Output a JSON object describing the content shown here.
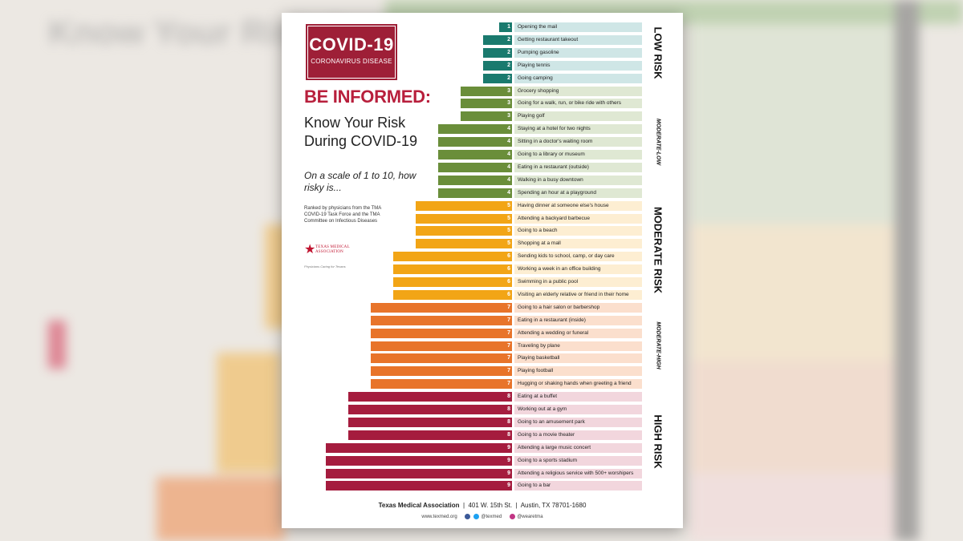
{
  "badge": {
    "title": "COVID-19",
    "subtitle": "CORONAVIRUS DISEASE"
  },
  "heading": "BE INFORMED:",
  "subheading": "Know Your Risk During COVID-19",
  "question": "On a scale of 1 to 10, how risky is...",
  "ranked_by": "Ranked by physicians from the TMA COVID-19 Task Force and the TMA Committee on Infectious Diseases",
  "org_logo": {
    "name": "TEXAS MEDICAL ASSOCIATION",
    "tagline": "Physicians Caring for Texans",
    "icon": "texas-star-icon"
  },
  "colors": {
    "1": "#1a7a6e",
    "2": "#1a7a6e",
    "3": "#6a8e3a",
    "4": "#6a8e3a",
    "5": "#f2a516",
    "6": "#f2a516",
    "7": "#e8742a",
    "8": "#a51c3e",
    "9": "#a51c3e",
    "label_bg": {
      "1": "#cfe6e6",
      "2": "#cfe6e6",
      "3": "#dfe8d3",
      "4": "#dfe8d3",
      "5": "#fdeed2",
      "6": "#fdeed2",
      "7": "#fbdfcd",
      "8": "#f2d6dd",
      "9": "#f2d6dd"
    }
  },
  "zones": [
    {
      "label": "LOW RISK",
      "size": "big",
      "from": 0,
      "to": 4
    },
    {
      "label": "MODERATE-LOW",
      "size": "small",
      "from": 5,
      "to": 13
    },
    {
      "label": "MODERATE RISK",
      "size": "big",
      "from": 14,
      "to": 21
    },
    {
      "label": "MODERATE-HIGH",
      "size": "small",
      "from": 22,
      "to": 28
    },
    {
      "label": "HIGH RISK",
      "size": "big",
      "from": 29,
      "to": 36
    }
  ],
  "footer": {
    "org": "Texas Medical Association",
    "address": "401 W. 15th St.",
    "city": "Austin, TX 78701-1680",
    "website": "www.texmed.org",
    "social_handle": "@texmed",
    "instagram": "@wearetma"
  },
  "chart_data": {
    "type": "bar",
    "orientation": "horizontal",
    "title": "",
    "xlabel": "",
    "ylabel": "",
    "xlim": [
      0,
      10
    ],
    "categories": [
      "Opening the mail",
      "Getting restaurant takeout",
      "Pumping gasoline",
      "Playing tennis",
      "Going camping",
      "Grocery shopping",
      "Going for a walk, run, or bike ride with others",
      "Playing golf",
      "Staying at a hotel for two nights",
      "Sitting in a doctor's waiting room",
      "Going to a library or museum",
      "Eating in a restaurant (outside)",
      "Walking in a busy downtown",
      "Spending an hour at a playground",
      "Having dinner at someone else's house",
      "Attending a backyard barbecue",
      "Going to a beach",
      "Shopping at a mall",
      "Sending kids to school, camp, or day care",
      "Working a week in an office building",
      "Swimming in a public pool",
      "Visiting an elderly relative or friend in their home",
      "Going to a hair salon or barbershop",
      "Eating in a restaurant (inside)",
      "Attending a wedding or funeral",
      "Traveling by plane",
      "Playing basketball",
      "Playing football",
      "Hugging or shaking hands when greeting a friend",
      "Eating at a buffet",
      "Working out at a gym",
      "Going to an amusement park",
      "Going to a movie theater",
      "Attending a large music concert",
      "Going to a sports stadium",
      "Attending a religious service with 500+ worshipers",
      "Going to a bar"
    ],
    "values": [
      1,
      2,
      2,
      2,
      2,
      3,
      3,
      3,
      4,
      4,
      4,
      4,
      4,
      4,
      5,
      5,
      5,
      5,
      6,
      6,
      6,
      6,
      7,
      7,
      7,
      7,
      7,
      7,
      7,
      8,
      8,
      8,
      8,
      9,
      9,
      9,
      9
    ]
  }
}
